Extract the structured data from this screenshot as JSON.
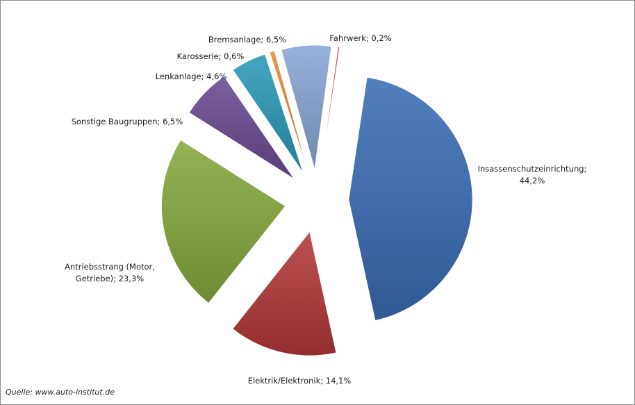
{
  "chart_data": {
    "type": "pie",
    "exploded": true,
    "legend": "none",
    "title": "",
    "slices": [
      {
        "label": "Insassenschutzeinrichtung;",
        "label_line2": "44,2%",
        "value": 44.2,
        "color": "#3a6db5"
      },
      {
        "label": "Elektrik/Elektronik; 14,1%",
        "label_line2": "",
        "value": 14.1,
        "color": "#b3383a"
      },
      {
        "label": "Antriebsstrang (Motor,",
        "label_line2": "Getriebe); 23,3%",
        "value": 23.3,
        "color": "#86a93e"
      },
      {
        "label": "Sonstige Baugruppen; 6,5%",
        "label_line2": "",
        "value": 6.5,
        "color": "#6a4a93"
      },
      {
        "label": "Lenkanlage; 4,6%",
        "label_line2": "",
        "value": 4.6,
        "color": "#2c9ab8"
      },
      {
        "label": "Karosserie; 0,6%",
        "label_line2": "",
        "value": 0.6,
        "color": "#e88a2e"
      },
      {
        "label": "Bremsanlage; 6,5%",
        "label_line2": "",
        "value": 6.5,
        "color": "#8aa6d6"
      },
      {
        "label": "Fahrwerk; 0,2%",
        "label_line2": "",
        "value": 0.2,
        "color": "#d9534f"
      }
    ]
  },
  "source": "Quelle: www.auto-institut.de"
}
